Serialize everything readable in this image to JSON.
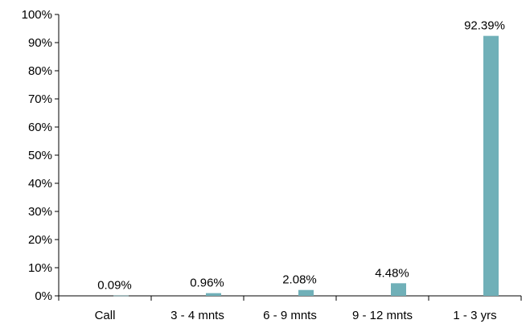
{
  "chart_data": {
    "type": "bar",
    "categories": [
      "Call",
      "3 - 4 mnts",
      "6 - 9 mnts",
      "9 - 12 mnts",
      "1 - 3 yrs"
    ],
    "values": [
      0.09,
      0.96,
      2.08,
      4.48,
      92.39
    ],
    "data_labels": [
      "0.09%",
      "0.96%",
      "2.08%",
      "4.48%",
      "92.39%"
    ],
    "y_ticks": [
      "0%",
      "10%",
      "20%",
      "30%",
      "40%",
      "50%",
      "60%",
      "70%",
      "80%",
      "90%",
      "100%"
    ],
    "ylim": [
      0,
      100
    ],
    "title": "",
    "xlabel": "",
    "ylabel": "",
    "grid": false,
    "legend": "none",
    "bar_color": "#70b0b8"
  }
}
